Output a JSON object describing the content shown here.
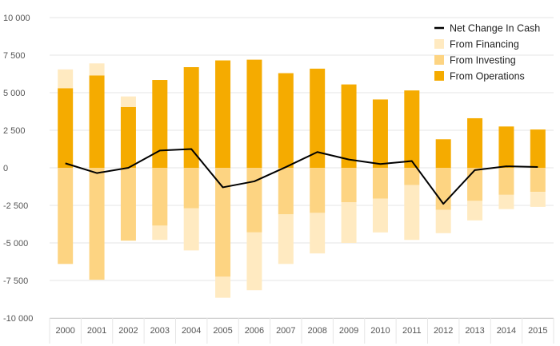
{
  "chart_data": {
    "type": "bar",
    "stacked": true,
    "categories": [
      "2000",
      "2001",
      "2002",
      "2003",
      "2004",
      "2005",
      "2006",
      "2007",
      "2008",
      "2009",
      "2010",
      "2011",
      "2012",
      "2013",
      "2014",
      "2015"
    ],
    "series": [
      {
        "name": "From Operations",
        "kind": "bar",
        "color": "#f5ab00",
        "values": [
          5300,
          6150,
          4050,
          5850,
          6700,
          7150,
          7200,
          6300,
          6600,
          5550,
          4550,
          5150,
          1900,
          3300,
          2750,
          2550
        ]
      },
      {
        "name": "From Investing",
        "kind": "bar",
        "color": "#fdd482",
        "values": [
          -6400,
          -7450,
          -4850,
          -3850,
          -2700,
          -7250,
          -4300,
          -3100,
          -3000,
          -2300,
          -2050,
          -1150,
          -2800,
          -2200,
          -1800,
          -1600
        ]
      },
      {
        "name": "From Financing",
        "kind": "bar",
        "color": "#ffeac1",
        "values": [
          1250,
          800,
          700,
          -950,
          -2800,
          -1400,
          -3850,
          -3300,
          -2700,
          -2700,
          -2250,
          -3650,
          -1550,
          -1300,
          -950,
          -1000
        ]
      },
      {
        "name": "Net Change In Cash",
        "kind": "line",
        "color": "#000000",
        "values": [
          300,
          -350,
          0,
          1150,
          1250,
          -1300,
          -900,
          50,
          1050,
          550,
          250,
          450,
          -2400,
          -150,
          100,
          50
        ]
      }
    ],
    "legend_order": [
      "Net Change In Cash",
      "From Financing",
      "From Investing",
      "From Operations"
    ],
    "ylim": [
      -10000,
      10000
    ],
    "yticks": [
      10000,
      7500,
      5000,
      2500,
      0,
      -2500,
      -5000,
      -7500,
      -10000
    ],
    "ytick_labels": [
      "10 000",
      "7 500",
      "5 000",
      "2 500",
      "0",
      "-2 500",
      "-5 000",
      "-7 500",
      "-10 000"
    ],
    "grid": true,
    "legend_position": "top-right"
  }
}
